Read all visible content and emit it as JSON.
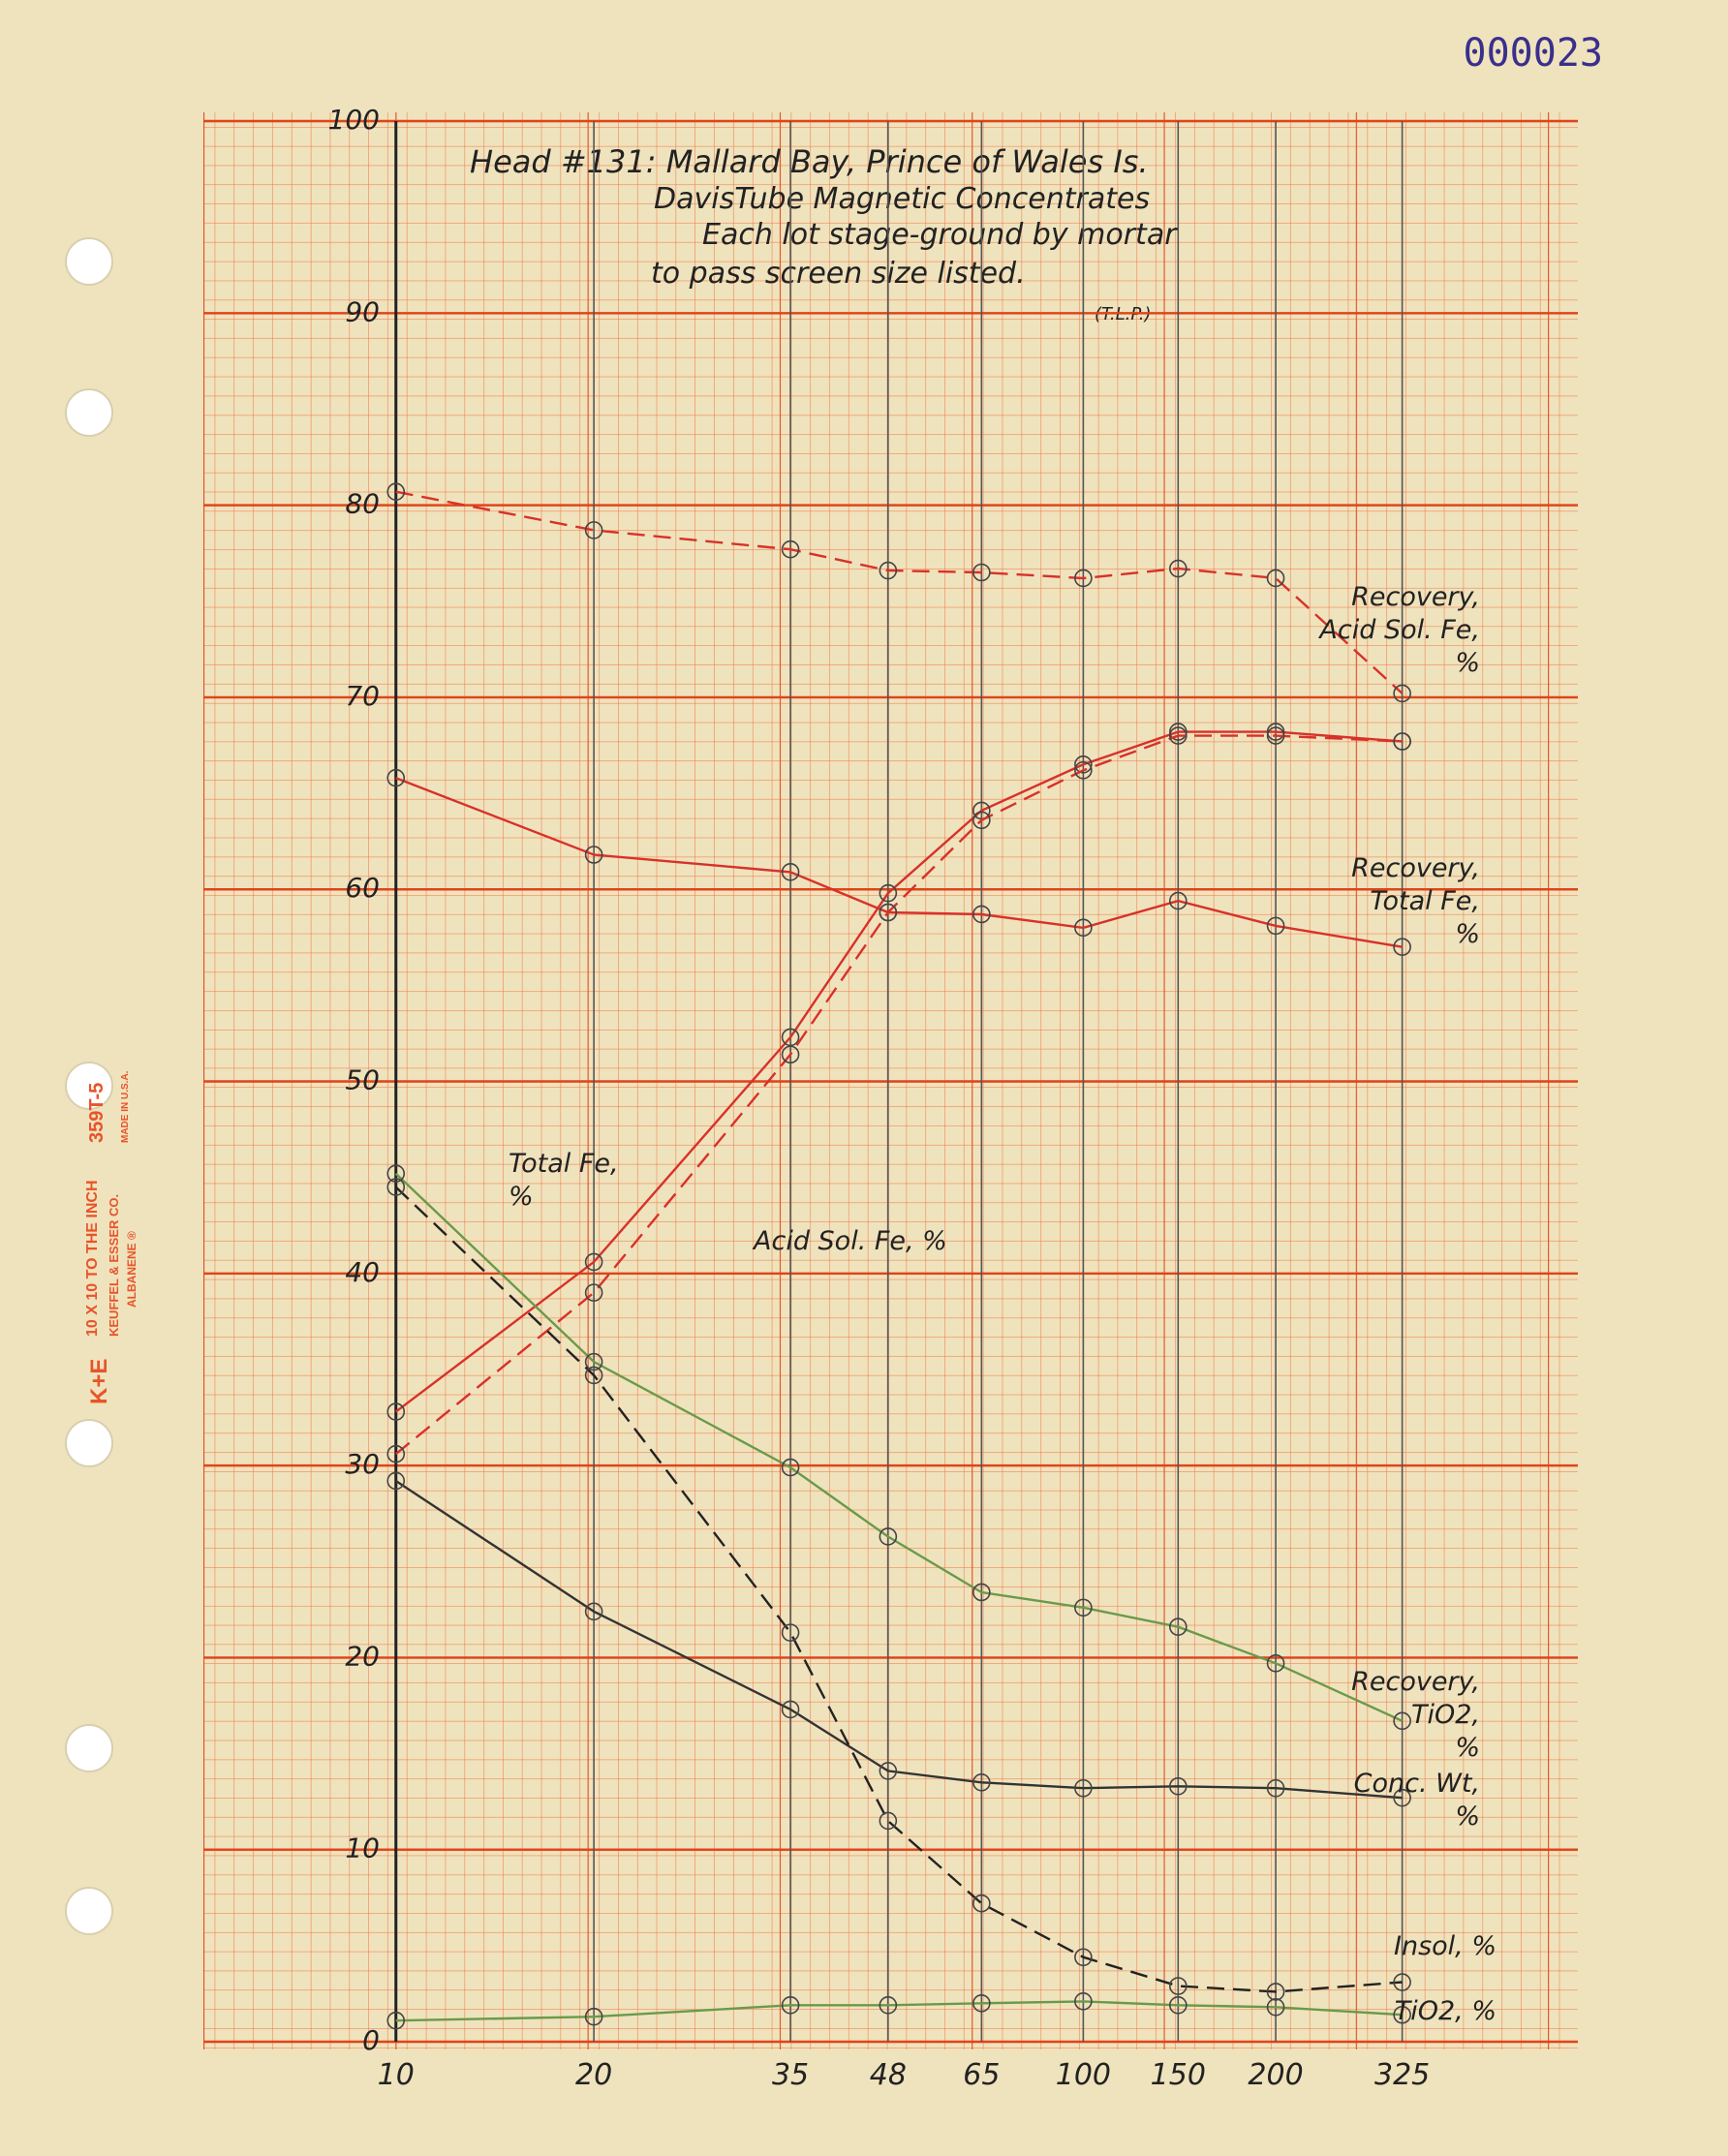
{
  "chart_data": {
    "type": "line",
    "title": "Head #131: Mallard Bay, Prince of Wales Is.",
    "subtitle_lines": [
      "DavisTube Magnetic Concentrates",
      "Each lot stage-ground by mortar",
      "to pass screen size listed."
    ],
    "author": "(T.L.P.)",
    "sheet_number": "000023",
    "paper_brand": [
      "K+E",
      "10 X 10 TO THE INCH",
      "KEUFFEL & ESSER CO.",
      "ALBANENE ®",
      "359T-5",
      "MADE IN U.S.A."
    ],
    "categories": [
      "10",
      "20",
      "35",
      "48",
      "65",
      "100",
      "150",
      "200",
      "325"
    ],
    "ylim": [
      0,
      100
    ],
    "yticks": [
      0,
      10,
      20,
      30,
      40,
      50,
      60,
      70,
      80,
      90,
      100
    ],
    "grid": true,
    "series": [
      {
        "name": "Recovery, Acid Sol. Fe, %",
        "color": "#d8312a",
        "linestyle": "dashed",
        "values": [
          80.7,
          78.7,
          77.7,
          76.6,
          76.5,
          76.2,
          76.7,
          76.2,
          70.2
        ]
      },
      {
        "name": "Recovery, Total Fe, %",
        "color": "#d8312a",
        "linestyle": "solid",
        "values": [
          65.8,
          61.8,
          60.9,
          58.8,
          58.7,
          58.0,
          59.4,
          58.1,
          57.0
        ]
      },
      {
        "name": "Total Fe, %",
        "color": "#d8312a",
        "linestyle": "solid",
        "values": [
          32.8,
          40.6,
          52.3,
          59.8,
          64.1,
          66.5,
          68.2,
          68.2,
          67.7
        ]
      },
      {
        "name": "Acid Sol. Fe, %",
        "color": "#d8312a",
        "linestyle": "dashed",
        "values": [
          30.6,
          39.0,
          51.4,
          58.8,
          63.6,
          66.2,
          68.0,
          68.0,
          67.7
        ]
      },
      {
        "name": "Recovery, TiO2, %",
        "color": "#6a9a4a",
        "linestyle": "solid",
        "values": [
          45.2,
          35.4,
          29.9,
          26.3,
          23.4,
          22.6,
          21.6,
          19.7,
          16.7
        ]
      },
      {
        "name": "Conc. Wt, %",
        "color": "#333333",
        "linestyle": "solid",
        "values": [
          29.2,
          22.4,
          17.3,
          14.1,
          13.5,
          13.2,
          13.3,
          13.2,
          12.7
        ]
      },
      {
        "name": "Insol, %",
        "color": "#222222",
        "linestyle": "dashed",
        "values": [
          44.5,
          34.7,
          21.3,
          11.5,
          7.2,
          4.4,
          2.9,
          2.6,
          3.1
        ]
      },
      {
        "name": "TiO2, %",
        "color": "#6a9a4a",
        "linestyle": "solid",
        "values": [
          1.1,
          1.3,
          1.9,
          1.9,
          2.0,
          2.1,
          1.9,
          1.8,
          1.4
        ]
      }
    ]
  }
}
